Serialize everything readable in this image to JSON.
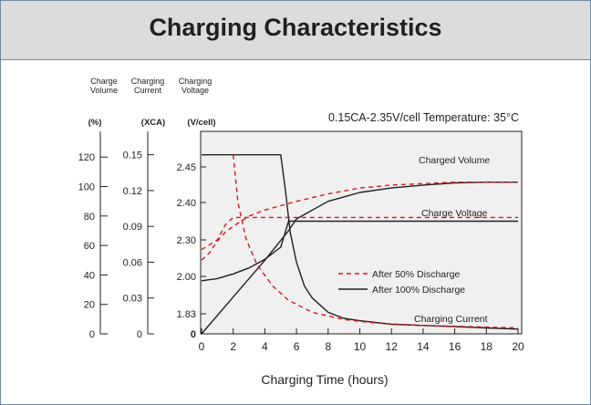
{
  "title": "Charging Characteristics",
  "chart_data": {
    "type": "line",
    "condition_note": "0.15CA-2.35V/cell  Temperature: 35°C",
    "xlabel": "Charging Time (hours)",
    "xlim": [
      0,
      20
    ],
    "x_ticks": [
      "0",
      "2",
      "4",
      "6",
      "8",
      "10",
      "12",
      "14",
      "16",
      "18",
      "20"
    ],
    "axes": [
      {
        "header": [
          "Charge",
          "Volume"
        ],
        "unit": "(%)",
        "range": [
          0,
          120
        ],
        "ticks": [
          "0",
          "20",
          "40",
          "60",
          "80",
          "100",
          "120"
        ]
      },
      {
        "header": [
          "Charging",
          "Current"
        ],
        "unit": "(XCA)",
        "range": [
          0,
          0.15
        ],
        "ticks": [
          "0",
          "0.03",
          "0.06",
          "0.09",
          "0.12",
          "0.15"
        ]
      },
      {
        "header": [
          "Charging",
          "Voltage"
        ],
        "unit": "(V/cell)",
        "ticks": [
          "0",
          "1.83",
          "2.00",
          "2.30",
          "2.40",
          "2.45"
        ]
      }
    ],
    "legend": [
      {
        "label": "After 50% Discharge",
        "style": "dashed",
        "color": "#d7191f"
      },
      {
        "label": "After 100% Discharge",
        "style": "solid",
        "color": "#231f20"
      }
    ],
    "curve_labels": [
      "Charged Volume",
      "Charge Voltage",
      "Charging Current"
    ],
    "series": [
      {
        "legend": "After 100% Discharge",
        "curve": "Charge Voltage",
        "axis": "V/cell",
        "x": [
          0,
          1,
          2,
          3,
          4,
          5,
          5.5,
          6,
          8,
          10,
          12,
          14,
          16,
          18,
          20
        ],
        "y": [
          1.98,
          1.99,
          2.02,
          2.07,
          2.14,
          2.24,
          2.35,
          2.35,
          2.35,
          2.35,
          2.35,
          2.35,
          2.35,
          2.35,
          2.35
        ]
      },
      {
        "legend": "After 100% Discharge",
        "curve": "Charged Volume",
        "axis": "%",
        "x": [
          0,
          2,
          4,
          5.5,
          6,
          8,
          10,
          12,
          14,
          16,
          18,
          20
        ],
        "y": [
          0,
          25,
          50,
          70,
          78,
          90,
          96,
          99,
          101,
          102.5,
          103,
          103
        ]
      },
      {
        "legend": "After 100% Discharge",
        "curve": "Charging Current",
        "axis": "XCA",
        "x": [
          0,
          5,
          5.3,
          5.6,
          6,
          6.5,
          7,
          8,
          9,
          10,
          12,
          14,
          16,
          18,
          20
        ],
        "y": [
          0.15,
          0.15,
          0.12,
          0.085,
          0.06,
          0.04,
          0.03,
          0.018,
          0.013,
          0.011,
          0.008,
          0.007,
          0.006,
          0.005,
          0.004
        ]
      },
      {
        "legend": "After 50% Discharge",
        "curve": "Charge Voltage",
        "axis": "V/cell",
        "x": [
          0,
          0.5,
          1,
          1.5,
          2,
          3,
          4,
          5,
          6,
          20
        ],
        "y": [
          2.22,
          2.26,
          2.3,
          2.34,
          2.36,
          2.36,
          2.36,
          2.36,
          2.36,
          2.36
        ]
      },
      {
        "legend": "After 50% Discharge",
        "curve": "Charged Volume",
        "axis": "%",
        "x": [
          0,
          0.5,
          1,
          1.5,
          2,
          3,
          4,
          6,
          8,
          10,
          12,
          14,
          16,
          18,
          20
        ],
        "y": [
          50,
          55,
          63,
          69,
          73,
          80,
          84,
          90,
          95,
          99,
          101,
          102,
          103,
          103,
          103
        ]
      },
      {
        "legend": "After 50% Discharge",
        "curve": "Charging Current",
        "axis": "XCA",
        "x": [
          2,
          2,
          2.3,
          2.8,
          3.5,
          4.5,
          5.5,
          7,
          9,
          11,
          14,
          17,
          20
        ],
        "y": [
          0.15,
          0.15,
          0.11,
          0.08,
          0.058,
          0.04,
          0.028,
          0.018,
          0.012,
          0.009,
          0.007,
          0.006,
          0.005
        ]
      }
    ]
  }
}
